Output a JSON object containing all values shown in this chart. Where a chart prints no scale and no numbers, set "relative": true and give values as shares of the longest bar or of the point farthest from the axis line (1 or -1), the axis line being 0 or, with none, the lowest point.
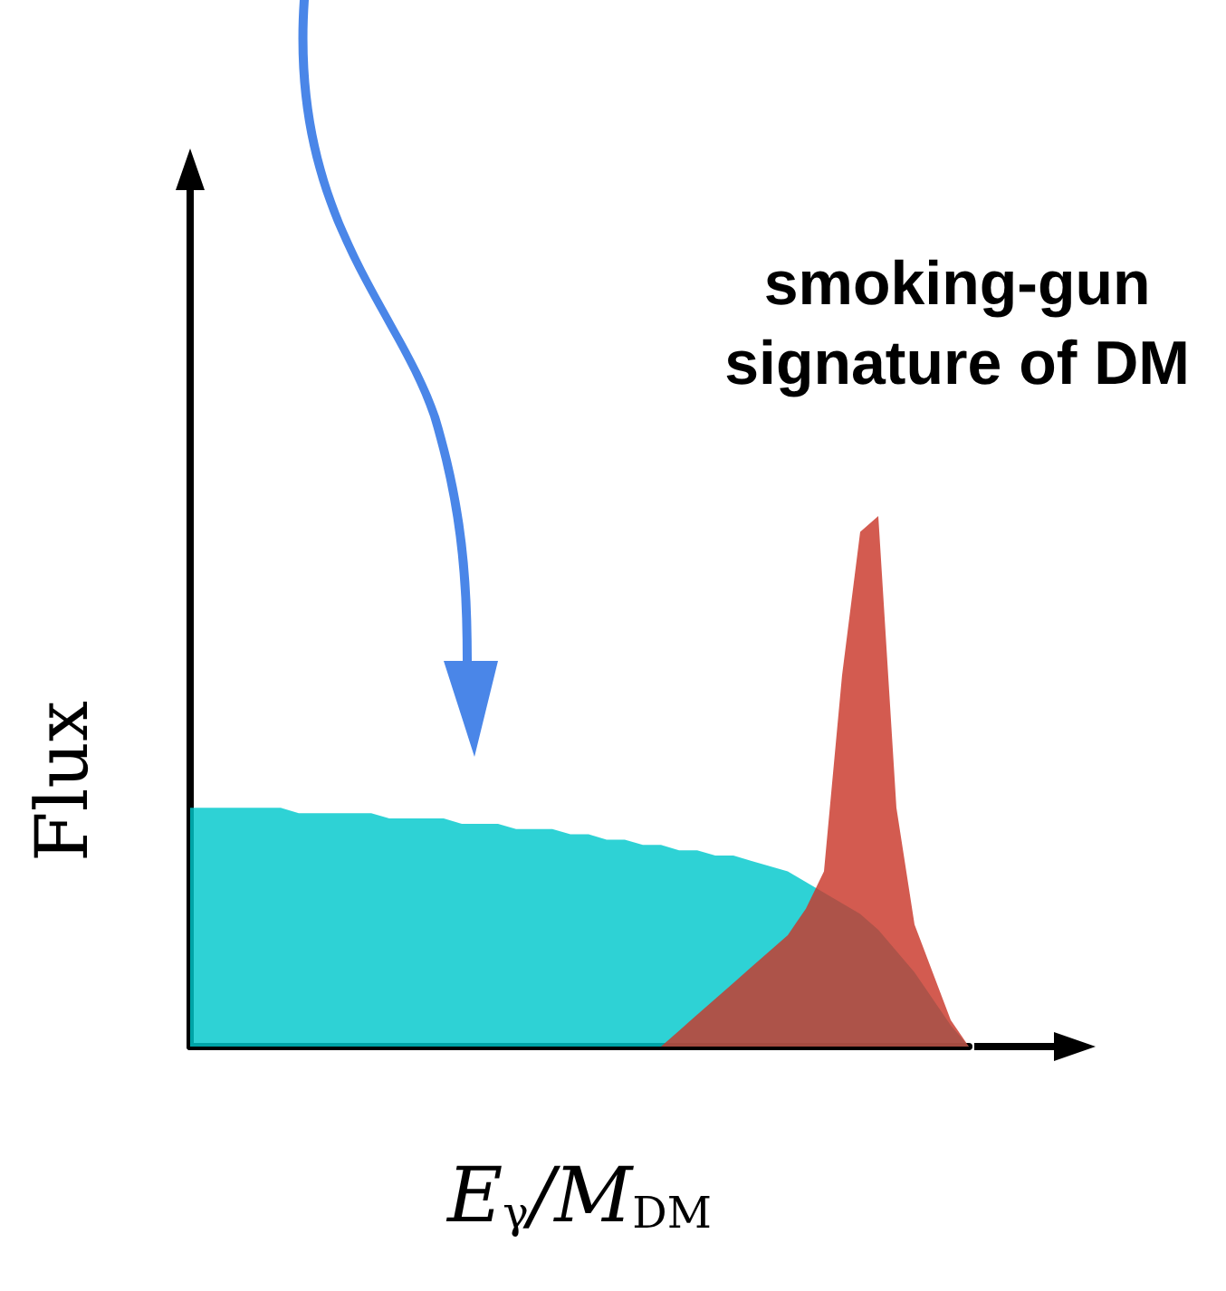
{
  "chart_data": {
    "type": "area",
    "relative": true,
    "xlabel": "E$_{γ}$/M$_{DM}$",
    "ylabel": "Flux",
    "annotations": [
      "smoking-gun\nsignature of DM"
    ],
    "grid": false,
    "marker": "none",
    "categories": [
      null,
      null,
      null,
      null,
      null,
      null,
      null,
      null,
      null,
      null,
      null,
      null,
      null,
      null,
      null,
      null,
      null,
      null,
      null,
      null,
      null,
      null,
      null,
      null,
      null,
      null,
      null,
      null,
      null,
      null,
      null,
      null,
      null,
      null,
      null,
      null,
      null,
      null,
      null,
      null,
      null,
      null,
      null,
      null
    ],
    "series": [
      {
        "color": "#00c8cc",
        "values": [
          0.45,
          0.45,
          0.45,
          0.45,
          0.45,
          0.45,
          0.44,
          0.44,
          0.44,
          0.44,
          0.44,
          0.43,
          0.43,
          0.43,
          0.43,
          0.42,
          0.42,
          0.42,
          0.41,
          0.41,
          0.41,
          0.4,
          0.4,
          0.39,
          0.39,
          0.38,
          0.38,
          0.37,
          0.37,
          0.36,
          0.36,
          0.35,
          0.34,
          0.33,
          0.31,
          0.29,
          0.27,
          0.25,
          0.22,
          0.18,
          0.14,
          0.09,
          0.04,
          0
        ]
      },
      {
        "color": "#c9372a",
        "values": [
          null,
          null,
          null,
          null,
          null,
          null,
          null,
          null,
          null,
          null,
          null,
          null,
          null,
          null,
          null,
          null,
          null,
          null,
          null,
          null,
          null,
          null,
          null,
          null,
          null,
          null,
          0,
          0.03,
          0.06,
          0.09,
          0.12,
          0.15,
          0.18,
          0.21,
          0.26,
          0.33,
          0.7,
          0.97,
          1,
          0.45,
          0.23,
          0.14,
          0.05,
          0
        ]
      }
    ]
  }
}
